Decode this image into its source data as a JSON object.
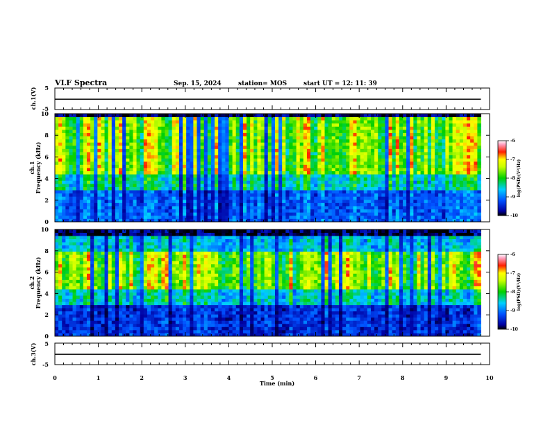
{
  "header": {
    "title": "VLF Spectra",
    "date": "Sep. 15, 2024",
    "station": "station= MOS",
    "start": "start  UT =  12: 11: 39"
  },
  "chart_data": [
    {
      "type": "line",
      "name": "ch1-waveform",
      "ylabel": "ch.1(V)",
      "ylim": [
        -5,
        5
      ],
      "yticks": [
        "5",
        "-5"
      ],
      "xlim": [
        0,
        10
      ],
      "x": [
        0,
        9.8
      ],
      "values": [
        -0.2,
        -0.2
      ]
    },
    {
      "type": "heatmap",
      "name": "ch1-spectrogram",
      "ylabel": "ch.1\nFrequency (kHz)",
      "ylim": [
        0,
        10
      ],
      "yticks": [
        "0",
        "2",
        "4",
        "6",
        "8",
        "10"
      ],
      "xlim": [
        0,
        10
      ],
      "data_end_min": 9.8,
      "colorbar": {
        "label": "log(PSD)(V²/Hz)",
        "range": [
          -10,
          -6
        ],
        "ticks": [
          "-6",
          "-7",
          "-8",
          "-9",
          "-10"
        ]
      }
    },
    {
      "type": "heatmap",
      "name": "ch2-spectrogram",
      "ylabel": "ch.2\nFrequency (kHz)",
      "ylim": [
        0,
        10
      ],
      "yticks": [
        "0",
        "2",
        "4",
        "6",
        "8",
        "10"
      ],
      "xlim": [
        0,
        10
      ],
      "data_end_min": 9.8,
      "colorbar": {
        "label": "log(PSD)(V²/Hz)",
        "range": [
          -10,
          -6
        ],
        "ticks": [
          "-6",
          "-7",
          "-8",
          "-9",
          "-10"
        ]
      }
    },
    {
      "type": "line",
      "name": "ch3-waveform",
      "ylabel": "ch.3(V)",
      "ylim": [
        -5,
        5
      ],
      "yticks": [
        "5",
        "-5"
      ],
      "xlim": [
        0,
        10
      ],
      "x": [
        0,
        9.8
      ],
      "values": [
        -0.2,
        -0.2
      ]
    }
  ],
  "xaxis": {
    "label": "Time (min)",
    "ticks": [
      "0",
      "1",
      "2",
      "3",
      "4",
      "5",
      "6",
      "7",
      "8",
      "9",
      "10"
    ]
  },
  "colors": {
    "low": "#000080",
    "mid": "#00c000",
    "high": "#e00000",
    "trace": "#000000"
  }
}
